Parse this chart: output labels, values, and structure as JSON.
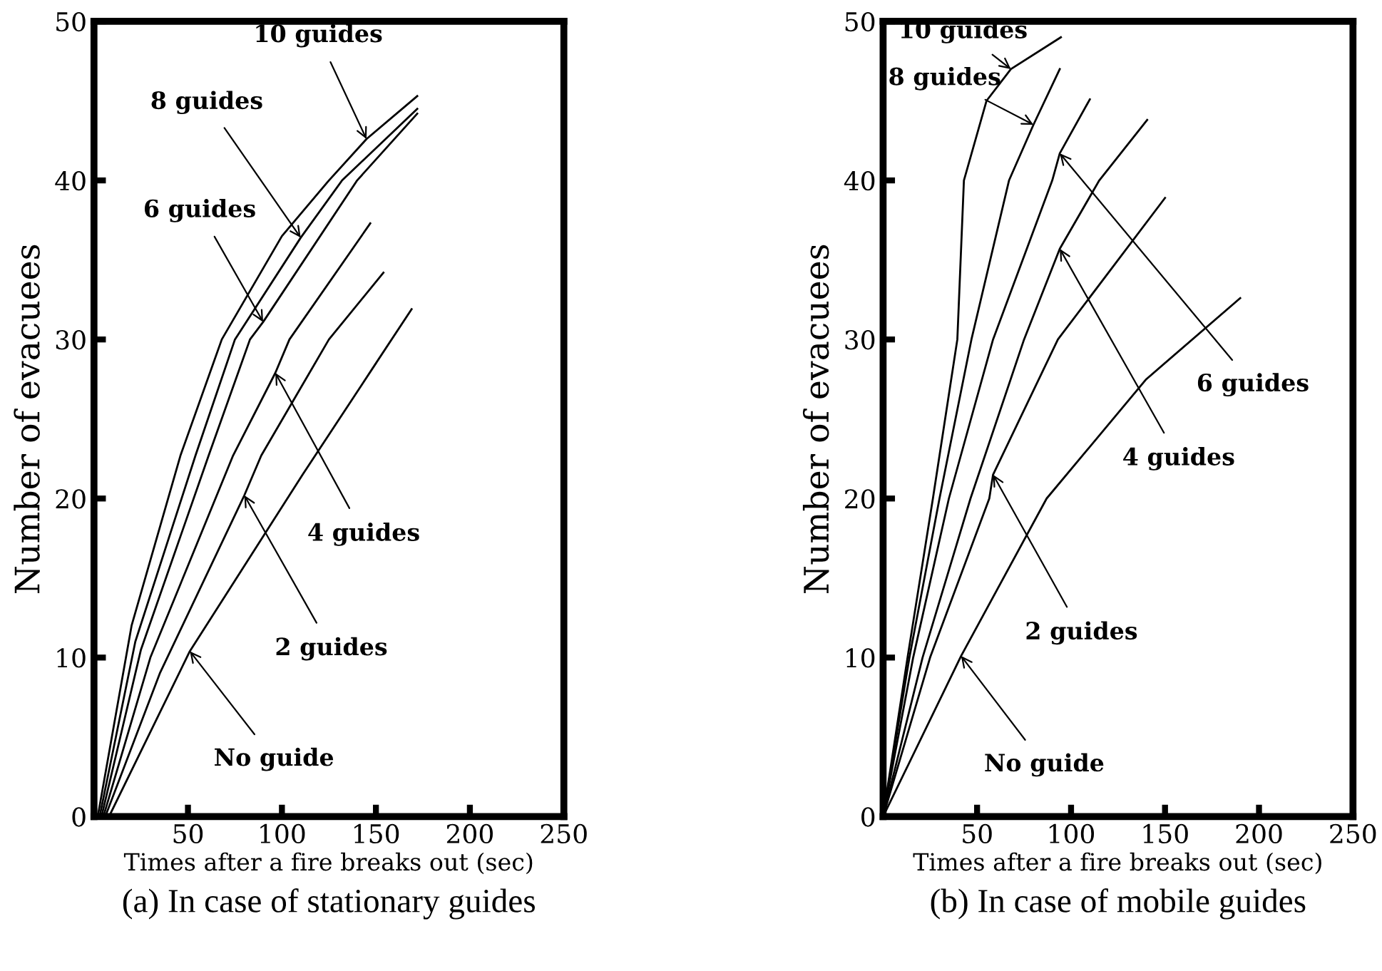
{
  "chart_data": [
    {
      "type": "line",
      "title": "(a) In case of stationary guides",
      "xlabel": "Times after a fire breaks out (sec)",
      "ylabel": "Number of evacuees",
      "xlim": [
        0,
        250
      ],
      "ylim": [
        0,
        50
      ],
      "xticks": [
        50,
        100,
        150,
        200,
        250
      ],
      "yticks": [
        0,
        10,
        20,
        30,
        40,
        50
      ],
      "grid": false,
      "legend": false,
      "line_style": "solid",
      "series": [
        {
          "color": "#000000",
          "x": [
            2,
            20,
            46,
            68,
            100,
            125,
            145,
            172
          ],
          "values": [
            0,
            12,
            22.7,
            30,
            36.5,
            40,
            42.6,
            45.3
          ]
        },
        {
          "color": "#000000",
          "x": [
            3,
            22,
            54,
            75,
            110,
            132,
            172
          ],
          "values": [
            0,
            11,
            22.7,
            30,
            36.4,
            40,
            44.5
          ]
        },
        {
          "color": "#000000",
          "x": [
            4,
            25,
            61,
            83,
            90,
            140,
            172
          ],
          "values": [
            0,
            10.5,
            22.7,
            30,
            31.1,
            40,
            44.2
          ]
        },
        {
          "color": "#000000",
          "x": [
            5,
            30,
            74,
            96.5,
            104,
            147
          ],
          "values": [
            0,
            10,
            22.7,
            27.9,
            30,
            37.3
          ]
        },
        {
          "color": "#000000",
          "x": [
            6,
            35,
            80,
            89,
            125,
            154
          ],
          "values": [
            0,
            9,
            20.2,
            22.7,
            30,
            34.2
          ]
        },
        {
          "color": "#000000",
          "x": [
            8,
            51,
            111,
            150,
            169
          ],
          "values": [
            0,
            10.4,
            21.5,
            28.5,
            31.9
          ]
        }
      ],
      "annotations": [
        {
          "text": "10 guides",
          "x": 145,
          "y": 42.6
        },
        {
          "text": "8 guides",
          "x": 110,
          "y": 36.4
        },
        {
          "text": "6 guides",
          "x": 90,
          "y": 31.1
        },
        {
          "text": "4 guides",
          "x": 96.5,
          "y": 27.9
        },
        {
          "text": "2 guides",
          "x": 80,
          "y": 20.2
        },
        {
          "text": "No guide",
          "x": 51,
          "y": 10.4
        }
      ]
    },
    {
      "type": "line",
      "title": "(b) In case of mobile guides",
      "xlabel": "Times after a fire breaks out (sec)",
      "ylabel": "Number of evacuees",
      "xlim": [
        0,
        250
      ],
      "ylim": [
        0,
        50
      ],
      "xticks": [
        50,
        100,
        150,
        200,
        250
      ],
      "yticks": [
        0,
        10,
        20,
        30,
        40,
        50
      ],
      "grid": false,
      "legend": false,
      "line_style": "solid",
      "series": [
        {
          "color": "#000000",
          "x": [
            0,
            13,
            26.5,
            39.5,
            43,
            55,
            68,
            94.6
          ],
          "values": [
            0,
            10,
            20,
            30,
            40,
            45,
            47,
            49
          ]
        },
        {
          "color": "#000000",
          "x": [
            0,
            14,
            30,
            47,
            67,
            80,
            94
          ],
          "values": [
            0,
            10,
            20,
            30,
            40,
            43.5,
            47
          ]
        },
        {
          "color": "#000000",
          "x": [
            0,
            16,
            35,
            58.5,
            90,
            94,
            110
          ],
          "values": [
            0,
            10,
            20,
            30,
            40,
            41.7,
            45.1
          ]
        },
        {
          "color": "#000000",
          "x": [
            0,
            21,
            46.5,
            75,
            94,
            115,
            140.5
          ],
          "values": [
            0,
            10,
            20,
            30,
            35.7,
            40,
            43.8
          ]
        },
        {
          "color": "#000000",
          "x": [
            0,
            25,
            56.5,
            58.5,
            93,
            150
          ],
          "values": [
            0,
            10,
            20,
            21.5,
            30,
            38.9
          ]
        },
        {
          "color": "#000000",
          "x": [
            0,
            41.5,
            87,
            140,
            190
          ],
          "values": [
            0,
            10.1,
            20,
            27.5,
            32.6
          ]
        }
      ],
      "annotations": [
        {
          "text": "10 guides",
          "x": 68,
          "y": 47
        },
        {
          "text": "8 guides",
          "x": 80,
          "y": 43.5
        },
        {
          "text": "6 guides",
          "x": 94,
          "y": 41.7
        },
        {
          "text": "4 guides",
          "x": 94,
          "y": 35.7
        },
        {
          "text": "2 guides",
          "x": 58.5,
          "y": 21.5
        },
        {
          "text": "No guide",
          "x": 41.5,
          "y": 10.1
        }
      ]
    }
  ]
}
